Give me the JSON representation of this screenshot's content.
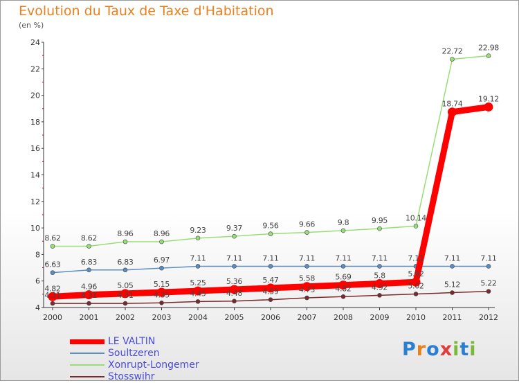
{
  "title": "Evolution du Taux de Taxe d'Habitation",
  "unit_label": "(en %)",
  "logo_text": "Proxiti",
  "chart_data": {
    "type": "line",
    "x": [
      "2000",
      "2001",
      "2002",
      "2003",
      "2004",
      "2005",
      "2006",
      "2007",
      "2008",
      "2009",
      "2010",
      "2011",
      "2012"
    ],
    "ylim": [
      4,
      24
    ],
    "yticks": [
      "4",
      "6",
      "8",
      "10",
      "12",
      "14",
      "16",
      "18",
      "20",
      "22",
      "24"
    ],
    "grid": false,
    "legend_position": "bottom-left",
    "series": [
      {
        "name": "LE VALTIN",
        "color": "#ff0000",
        "values": [
          4.82,
          4.96,
          5.05,
          5.15,
          5.25,
          5.36,
          5.47,
          5.58,
          5.69,
          5.8,
          5.92,
          18.74,
          19.12
        ],
        "labels": [
          "4.82",
          "4.96",
          "5.05",
          "5.15",
          "5.25",
          "5.36",
          "5.47",
          "5.58",
          "5.69",
          "5.8",
          "5.92",
          "18.74",
          "19.12"
        ]
      },
      {
        "name": "Soultzeren",
        "color": "#5b8ec0",
        "values": [
          6.63,
          6.83,
          6.83,
          6.97,
          7.11,
          7.11,
          7.11,
          7.11,
          7.11,
          7.11,
          7.11,
          7.11,
          7.11
        ],
        "labels": [
          "6.63",
          "6.83",
          "6.83",
          "6.97",
          "7.11",
          "7.11",
          "7.11",
          "7.11",
          "7.11",
          "7.11",
          "7.11",
          "7.11",
          "7.11"
        ]
      },
      {
        "name": "Xonrupt-Longemer",
        "color": "#99dd77",
        "values": [
          8.62,
          8.62,
          8.96,
          8.96,
          9.23,
          9.37,
          9.56,
          9.66,
          9.8,
          9.95,
          10.14,
          22.72,
          22.98
        ],
        "labels": [
          "8.62",
          "8.62",
          "8.96",
          "8.96",
          "9.23",
          "9.37",
          "9.56",
          "9.66",
          "9.8",
          "9.95",
          "10.14",
          "22.72",
          "22.98"
        ]
      },
      {
        "name": "Stosswihr",
        "color": "#7a2a2a",
        "values": [
          4.31,
          4.31,
          4.31,
          4.35,
          4.45,
          4.48,
          4.59,
          4.73,
          4.82,
          4.92,
          5.02,
          5.12,
          5.22
        ],
        "labels": [
          "4.31",
          "4.31",
          "4.31",
          "4.35",
          "4.45",
          "4.48",
          "4.59",
          "4.73",
          "4.82",
          "4.92",
          "5.02",
          "5.12",
          "5.22"
        ]
      }
    ]
  }
}
